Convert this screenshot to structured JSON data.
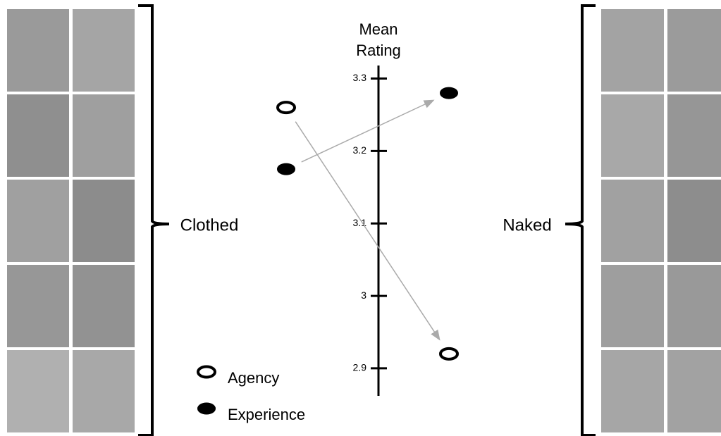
{
  "chart_data": {
    "type": "slope",
    "ylabel": "Mean Rating",
    "categories": [
      "Clothed",
      "Naked"
    ],
    "series": [
      {
        "name": "Agency",
        "color": "#000000",
        "fill": "none",
        "values": [
          3.26,
          2.92
        ]
      },
      {
        "name": "Experience",
        "color": "#000000",
        "fill": "#000000",
        "values": [
          3.175,
          3.28
        ]
      }
    ],
    "ylim": [
      2.862,
      3.318
    ],
    "yticks": [
      2.9,
      3.0,
      3.1,
      3.2,
      3.3
    ],
    "arrow_color": "#aaaaaa"
  }
}
